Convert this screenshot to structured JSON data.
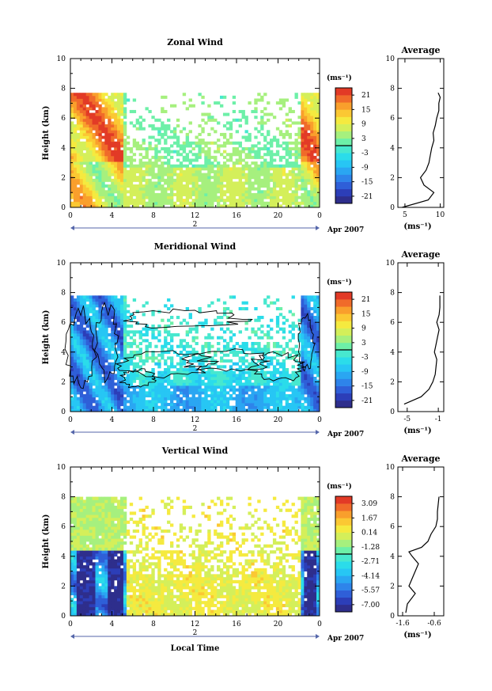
{
  "figure": {
    "xlabel": "Local Time",
    "date_label": "Apr 2007",
    "day_label": "2"
  },
  "chart_data": [
    {
      "type": "heatmap",
      "title": "Zonal Wind",
      "ylabel": "Height (km)",
      "xlabel": "Local Time",
      "x_ticks": [
        "0",
        "4",
        "8",
        "12",
        "16",
        "20",
        "0"
      ],
      "xlim": [
        0,
        24
      ],
      "y_ticks": [
        "0",
        "2",
        "4",
        "6",
        "8",
        "10"
      ],
      "ylim": [
        0,
        10
      ],
      "colorbar": {
        "unit": "(ms⁻¹)",
        "ticks": [
          "21",
          "15",
          "9",
          "3",
          "-3",
          "-9",
          "-15",
          "-21"
        ],
        "range": [
          -24,
          24
        ]
      },
      "data_extent": {
        "x": [
          0,
          24
        ],
        "y": [
          0,
          7.7
        ]
      },
      "contour": false,
      "profile": {
        "title": "Average",
        "xlabel": "(ms⁻¹)",
        "x_ticks": [
          "5",
          "10"
        ],
        "xlim": [
          4,
          10.5
        ],
        "x": [
          4.6,
          8.3,
          9.1,
          7.7,
          7.2,
          8.0,
          8.4,
          8.6,
          8.8,
          9.1,
          9.0,
          9.3,
          9.5,
          9.8,
          9.8,
          10.0,
          9.7
        ],
        "y": [
          0.0,
          0.5,
          1.0,
          1.5,
          2.0,
          2.5,
          3.0,
          3.5,
          4.0,
          4.5,
          5.0,
          5.5,
          6.0,
          6.5,
          7.0,
          7.4,
          7.7
        ]
      }
    },
    {
      "type": "heatmap",
      "title": "Meridional Wind",
      "ylabel": "Height (km)",
      "xlabel": "Local Time",
      "x_ticks": [
        "0",
        "4",
        "8",
        "12",
        "16",
        "20",
        "0"
      ],
      "xlim": [
        0,
        24
      ],
      "y_ticks": [
        "0",
        "2",
        "4",
        "6",
        "8",
        "10"
      ],
      "ylim": [
        0,
        10
      ],
      "colorbar": {
        "unit": "(ms⁻¹)",
        "ticks": [
          "21",
          "15",
          "9",
          "3",
          "-3",
          "-9",
          "-15",
          "-21"
        ],
        "range": [
          -24,
          24
        ]
      },
      "data_extent": {
        "x": [
          0,
          24
        ],
        "y": [
          0,
          7.8
        ]
      },
      "contour": true,
      "profile": {
        "title": "Average",
        "xlabel": "(ms⁻¹)",
        "x_ticks": [
          "-5",
          "-1"
        ],
        "xlim": [
          -6.2,
          -0.3
        ],
        "x": [
          -5.4,
          -3.2,
          -2.2,
          -1.7,
          -1.4,
          -1.3,
          -1.2,
          -1.5,
          -1.3,
          -1.1,
          -0.9,
          -1.2,
          -0.9,
          -0.8,
          -0.8
        ],
        "y": [
          0.5,
          1.0,
          1.5,
          2.0,
          2.5,
          3.0,
          3.5,
          4.0,
          4.5,
          5.0,
          5.5,
          6.0,
          6.5,
          7.0,
          7.8
        ]
      }
    },
    {
      "type": "heatmap",
      "title": "Vertical Wind",
      "ylabel": "Height (km)",
      "xlabel": "Local Time",
      "x_ticks": [
        "0",
        "4",
        "8",
        "12",
        "16",
        "20",
        "0"
      ],
      "xlim": [
        0,
        24
      ],
      "y_ticks": [
        "0",
        "2",
        "4",
        "6",
        "8",
        "10"
      ],
      "ylim": [
        0,
        10
      ],
      "colorbar": {
        "unit": "(ms⁻¹)",
        "ticks": [
          "3.09",
          "1.67",
          "0.14",
          "-1.28",
          "-2.71",
          "-4.14",
          "-5.57",
          "-7.00"
        ],
        "range": [
          -7.7,
          3.8
        ]
      },
      "data_extent": {
        "x": [
          0,
          24
        ],
        "y": [
          0,
          8.0
        ]
      },
      "contour": false,
      "profile": {
        "title": "Average",
        "xlabel": "(ms⁻¹)",
        "x_ticks": [
          "-1.6",
          "-0.6"
        ],
        "xlim": [
          -1.75,
          -0.3
        ],
        "x": [
          -1.5,
          -1.45,
          -1.2,
          -1.4,
          -1.3,
          -1.2,
          -1.1,
          -1.3,
          -1.4,
          -1.0,
          -0.8,
          -0.7,
          -0.55,
          -0.5,
          -0.5,
          -0.45
        ],
        "y": [
          0.2,
          0.8,
          1.5,
          2.0,
          2.5,
          3.0,
          3.5,
          4.0,
          4.3,
          4.6,
          5.0,
          5.5,
          6.0,
          6.5,
          7.0,
          8.0
        ]
      }
    }
  ]
}
